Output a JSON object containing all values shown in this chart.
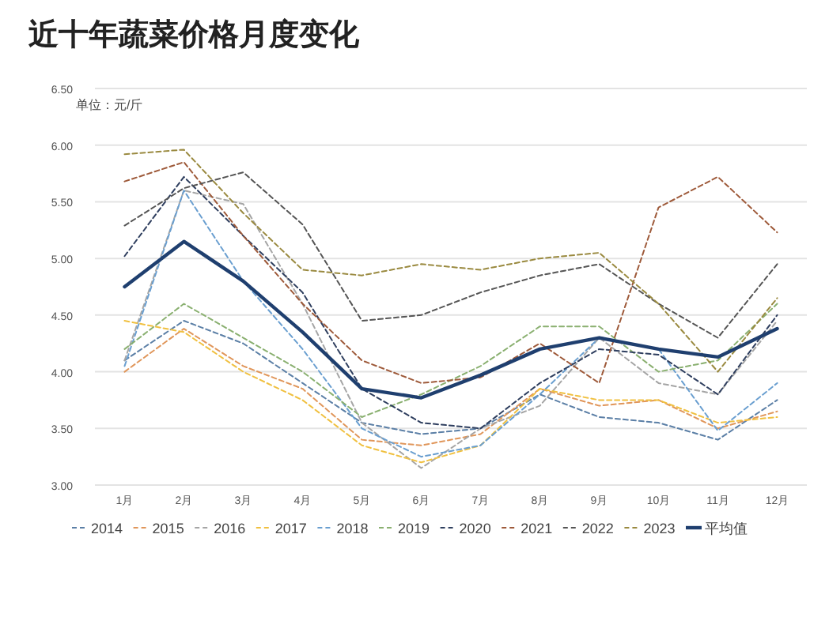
{
  "chart_data": {
    "type": "line",
    "title": "近十年蔬菜价格月度变化",
    "annotations": [
      "单位：元/斤"
    ],
    "categories": [
      "1月",
      "2月",
      "3月",
      "4月",
      "5月",
      "6月",
      "7月",
      "8月",
      "9月",
      "10月",
      "11月",
      "12月"
    ],
    "ylim": [
      3,
      6.5
    ],
    "yticks": [
      {
        "value": 3,
        "label": "3.00"
      },
      {
        "value": 3.5,
        "label": "3.50"
      },
      {
        "value": 4,
        "label": "4.00"
      },
      {
        "value": 4.5,
        "label": "4.50"
      },
      {
        "value": 5,
        "label": "5.00"
      },
      {
        "value": 5.5,
        "label": "5.50"
      },
      {
        "value": 6,
        "label": "6.00"
      },
      {
        "value": 6.5,
        "label": "6.50"
      }
    ],
    "grid": "y",
    "legend": "bottom",
    "marker": "none",
    "series": [
      {
        "name": "2014",
        "color": "#5b7fa6",
        "line_style": "dashed",
        "values": [
          4.1,
          4.45,
          4.25,
          3.9,
          3.55,
          3.45,
          3.5,
          3.8,
          3.6,
          3.55,
          3.4,
          3.75
        ]
      },
      {
        "name": "2015",
        "color": "#e0965a",
        "line_style": "dashed",
        "values": [
          4.0,
          4.38,
          4.05,
          3.85,
          3.4,
          3.35,
          3.45,
          3.85,
          3.7,
          3.75,
          3.5,
          3.65
        ]
      },
      {
        "name": "2016",
        "color": "#a5a5a5",
        "line_style": "dashed",
        "values": [
          4.1,
          5.6,
          5.48,
          4.6,
          3.55,
          3.15,
          3.5,
          3.7,
          4.3,
          3.9,
          3.8,
          4.45
        ]
      },
      {
        "name": "2017",
        "color": "#f0c040",
        "line_style": "dashed",
        "values": [
          4.45,
          4.35,
          4.0,
          3.75,
          3.35,
          3.2,
          3.35,
          3.85,
          3.75,
          3.75,
          3.55,
          3.6
        ]
      },
      {
        "name": "2018",
        "color": "#6a9fd0",
        "line_style": "dashed",
        "values": [
          4.05,
          5.6,
          4.8,
          4.2,
          3.5,
          3.25,
          3.35,
          3.8,
          4.3,
          4.2,
          3.48,
          3.9
        ]
      },
      {
        "name": "2019",
        "color": "#8ab070",
        "line_style": "dashed",
        "values": [
          4.2,
          4.6,
          4.3,
          4.0,
          3.6,
          3.8,
          4.05,
          4.4,
          4.4,
          4.0,
          4.1,
          4.6
        ]
      },
      {
        "name": "2020",
        "color": "#2f3f5f",
        "line_style": "dashed",
        "values": [
          5.02,
          5.72,
          5.2,
          4.7,
          3.85,
          3.55,
          3.5,
          3.9,
          4.2,
          4.15,
          3.8,
          4.5
        ]
      },
      {
        "name": "2021",
        "color": "#9e5a3a",
        "line_style": "dashed",
        "values": [
          5.68,
          5.85,
          5.2,
          4.6,
          4.1,
          3.9,
          3.95,
          4.25,
          3.9,
          5.45,
          5.72,
          5.23
        ]
      },
      {
        "name": "2022",
        "color": "#555555",
        "line_style": "dashed",
        "values": [
          5.29,
          5.62,
          5.76,
          5.3,
          4.45,
          4.5,
          4.7,
          4.85,
          4.95,
          4.6,
          4.3,
          4.95
        ]
      },
      {
        "name": "2023",
        "color": "#9a8a40",
        "line_style": "dashed",
        "values": [
          5.92,
          5.96,
          5.4,
          4.9,
          4.85,
          4.95,
          4.9,
          5.0,
          5.05,
          4.6,
          4.0,
          4.65
        ]
      },
      {
        "name": "平均值",
        "color": "#1f3f6f",
        "line_style": "solid",
        "values": [
          4.75,
          5.15,
          4.8,
          4.35,
          3.85,
          3.77,
          3.97,
          4.2,
          4.3,
          4.2,
          4.13,
          4.38
        ]
      }
    ]
  }
}
